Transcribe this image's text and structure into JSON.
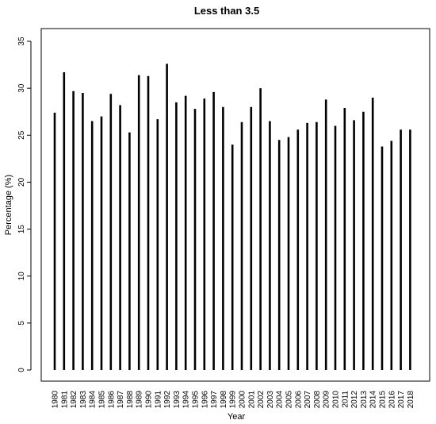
{
  "chart_data": {
    "type": "bar",
    "title": "Less than 3.5",
    "xlabel": "Year",
    "ylabel": "Percentage (%)",
    "ylim": [
      0,
      36
    ],
    "yticks": [
      0,
      5,
      10,
      15,
      20,
      25,
      30,
      35
    ],
    "grid": false,
    "legend": "none",
    "bar_color": "#000000",
    "categories": [
      "1980",
      "1981",
      "1982",
      "1983",
      "1984",
      "1985",
      "1986",
      "1987",
      "1988",
      "1989",
      "1990",
      "1991",
      "1992",
      "1993",
      "1994",
      "1995",
      "1996",
      "1997",
      "1998",
      "1999",
      "2000",
      "2001",
      "2002",
      "2003",
      "2004",
      "2005",
      "2006",
      "2007",
      "2008",
      "2009",
      "2010",
      "2011",
      "2012",
      "2013",
      "2014",
      "2015",
      "2016",
      "2017",
      "2018"
    ],
    "values": [
      27.4,
      31.7,
      29.7,
      29.5,
      26.5,
      27.0,
      29.4,
      28.2,
      25.3,
      31.4,
      31.3,
      26.7,
      32.6,
      28.5,
      29.2,
      27.8,
      28.9,
      29.6,
      28.0,
      24.0,
      26.4,
      28.0,
      30.0,
      26.5,
      24.5,
      24.8,
      25.6,
      26.3,
      26.4,
      28.8,
      26.0,
      27.9,
      26.6,
      27.5,
      29.0,
      23.8,
      24.4,
      25.6,
      25.6
    ]
  }
}
